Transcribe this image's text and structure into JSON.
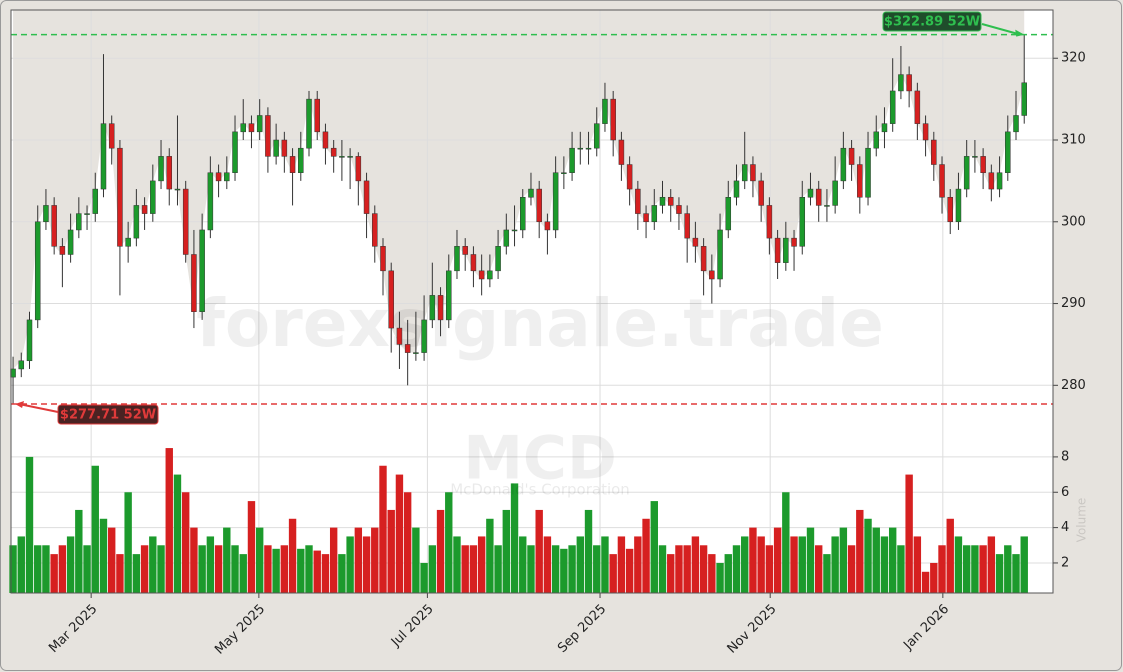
{
  "chart_data": {
    "type": "candlestick",
    "watermark": "forexsignale.trade",
    "symbol": "MCD",
    "company": "McDonald's Corporation",
    "volume_label": "Volume",
    "up_color": "#1c9a2c",
    "down_color": "#d62020",
    "grid": true,
    "xlim": [
      -0.25,
      126.5
    ],
    "xticks": [
      {
        "value": 9.5,
        "label": "Mar 2025"
      },
      {
        "value": 29.9,
        "label": "May 2025"
      },
      {
        "value": 50.4,
        "label": "Jul 2025"
      },
      {
        "value": 71.4,
        "label": "Sep 2025"
      },
      {
        "value": 92.1,
        "label": "Nov 2025"
      },
      {
        "value": 113.1,
        "label": "Jan 2026"
      }
    ],
    "ylim": [
      254.6,
      325.9
    ],
    "yticks": [
      280,
      290,
      300,
      310,
      320
    ],
    "y2lim": [
      0.3,
      8.9
    ],
    "y2ticks": [
      2,
      4,
      6,
      8
    ],
    "high_52w": {
      "value": 322.89,
      "label": "$322.89 52W",
      "color": "#2fbf4f"
    },
    "low_52w": {
      "value": 277.71,
      "label": "$277.71 52W",
      "color": "#e03a3a"
    },
    "ohlc": [
      [
        281,
        283.5,
        277.71,
        282
      ],
      [
        282,
        284,
        281,
        283
      ],
      [
        283,
        289,
        282,
        288
      ],
      [
        288,
        302,
        287,
        300
      ],
      [
        300,
        304,
        299,
        302
      ],
      [
        302,
        303,
        296,
        297
      ],
      [
        297,
        298,
        292,
        296
      ],
      [
        296,
        301,
        295,
        299
      ],
      [
        299,
        303,
        298,
        301
      ],
      [
        301,
        302,
        299,
        301
      ],
      [
        301,
        306,
        300,
        304
      ],
      [
        304,
        320.5,
        303,
        312
      ],
      [
        312,
        313,
        307,
        309
      ],
      [
        309,
        310,
        291,
        297
      ],
      [
        297,
        300,
        295,
        298
      ],
      [
        298,
        304,
        297,
        302
      ],
      [
        302,
        303,
        299,
        301
      ],
      [
        301,
        307,
        300,
        305
      ],
      [
        305,
        310,
        304,
        308
      ],
      [
        308,
        309,
        302,
        304
      ],
      [
        304,
        313,
        302,
        304
      ],
      [
        304,
        305,
        295,
        296
      ],
      [
        296,
        299,
        287,
        289
      ],
      [
        289,
        301,
        288,
        299
      ],
      [
        299,
        308,
        298,
        306
      ],
      [
        306,
        307,
        303,
        305
      ],
      [
        305,
        308,
        304,
        306
      ],
      [
        306,
        313,
        305,
        311
      ],
      [
        311,
        315,
        310,
        312
      ],
      [
        312,
        313,
        309,
        311
      ],
      [
        311,
        315,
        310,
        313
      ],
      [
        313,
        314,
        306,
        308
      ],
      [
        308,
        312,
        307,
        310
      ],
      [
        310,
        311,
        306,
        308
      ],
      [
        308,
        309,
        302,
        306
      ],
      [
        306,
        311,
        305,
        309
      ],
      [
        309,
        316,
        308,
        315
      ],
      [
        315,
        316,
        310,
        311
      ],
      [
        311,
        312,
        307,
        309
      ],
      [
        309,
        310,
        306,
        308
      ],
      [
        308,
        310,
        305,
        308
      ],
      [
        308,
        309,
        304,
        308
      ],
      [
        308,
        308.5,
        302,
        305
      ],
      [
        305,
        306,
        298,
        301
      ],
      [
        301,
        302,
        295,
        297
      ],
      [
        297,
        298,
        291,
        294
      ],
      [
        294,
        295,
        284,
        287
      ],
      [
        287,
        289,
        282,
        285
      ],
      [
        285,
        288,
        280,
        284
      ],
      [
        284,
        289,
        283,
        284
      ],
      [
        284,
        291,
        283,
        288
      ],
      [
        288,
        295,
        287,
        291
      ],
      [
        291,
        292,
        286,
        288
      ],
      [
        288,
        296,
        287,
        294
      ],
      [
        294,
        299,
        293,
        297
      ],
      [
        297,
        298,
        294,
        296
      ],
      [
        296,
        297,
        292,
        294
      ],
      [
        294,
        296,
        291,
        293
      ],
      [
        293,
        296,
        292,
        294
      ],
      [
        294,
        299,
        293,
        297
      ],
      [
        297,
        301,
        296,
        299
      ],
      [
        299,
        302,
        297,
        299
      ],
      [
        299,
        304,
        298,
        303
      ],
      [
        303,
        306,
        302,
        304
      ],
      [
        304,
        305,
        298,
        300
      ],
      [
        300,
        301,
        296,
        299
      ],
      [
        299,
        308,
        298,
        306
      ],
      [
        306,
        308,
        304,
        306
      ],
      [
        306,
        311,
        305,
        309
      ],
      [
        309,
        311,
        307,
        309
      ],
      [
        309,
        311,
        307,
        309
      ],
      [
        309,
        314,
        308,
        312
      ],
      [
        312,
        317,
        311,
        315
      ],
      [
        315,
        316,
        308,
        310
      ],
      [
        310,
        311,
        305,
        307
      ],
      [
        307,
        308,
        302,
        304
      ],
      [
        304,
        305,
        299,
        301
      ],
      [
        301,
        302,
        298,
        300
      ],
      [
        300,
        304,
        299,
        302
      ],
      [
        302,
        305,
        301,
        303
      ],
      [
        303,
        304,
        300,
        302
      ],
      [
        302,
        303,
        299,
        301
      ],
      [
        301,
        302,
        295,
        298
      ],
      [
        298,
        300,
        295,
        297
      ],
      [
        297,
        298,
        291,
        294
      ],
      [
        294,
        296,
        290,
        293
      ],
      [
        293,
        301,
        292,
        299
      ],
      [
        299,
        305,
        298,
        303
      ],
      [
        303,
        307,
        302,
        305
      ],
      [
        305,
        311,
        304,
        307
      ],
      [
        307,
        308,
        303,
        305
      ],
      [
        305,
        306,
        300,
        302
      ],
      [
        302,
        303,
        296,
        298
      ],
      [
        298,
        299,
        293,
        295
      ],
      [
        295,
        300,
        294,
        298
      ],
      [
        298,
        299,
        294,
        297
      ],
      [
        297,
        305,
        296,
        303
      ],
      [
        303,
        306,
        302,
        304
      ],
      [
        304,
        305,
        300,
        302
      ],
      [
        302,
        304,
        300,
        302
      ],
      [
        302,
        308,
        301,
        305
      ],
      [
        305,
        311,
        304,
        309
      ],
      [
        309,
        310,
        305,
        307
      ],
      [
        307,
        308,
        301,
        303
      ],
      [
        303,
        311,
        302,
        309
      ],
      [
        309,
        313,
        308,
        311
      ],
      [
        311,
        314,
        309,
        312
      ],
      [
        312,
        320,
        311,
        316
      ],
      [
        316,
        321.5,
        315,
        318
      ],
      [
        318,
        319,
        314,
        316
      ],
      [
        316,
        317,
        310,
        312
      ],
      [
        312,
        313,
        308,
        310
      ],
      [
        310,
        311,
        305,
        307
      ],
      [
        307,
        308,
        301,
        303
      ],
      [
        303,
        304,
        298.5,
        300
      ],
      [
        300,
        306,
        299,
        304
      ],
      [
        304,
        310,
        303,
        308
      ],
      [
        308,
        310,
        306,
        308
      ],
      [
        308,
        309,
        304,
        306
      ],
      [
        306,
        307,
        302.5,
        304
      ],
      [
        304,
        308,
        303,
        306
      ],
      [
        306,
        313,
        305,
        311
      ],
      [
        311,
        316,
        310,
        313
      ],
      [
        313,
        322.89,
        312,
        317
      ]
    ],
    "volume": [
      3,
      3.5,
      8,
      3,
      3,
      2.5,
      3,
      3.5,
      5,
      3,
      7.5,
      4.5,
      4,
      2.5,
      6,
      2.5,
      3,
      3.5,
      3,
      8.5,
      7,
      6,
      4,
      3,
      3.5,
      3,
      4,
      3,
      2.5,
      5.5,
      4,
      3,
      2.8,
      3,
      4.5,
      2.8,
      3,
      2.7,
      2.5,
      4,
      2.5,
      3.5,
      4,
      3.5,
      4,
      7.5,
      5,
      7,
      6,
      4,
      2,
      3,
      5,
      6,
      3.5,
      3,
      3,
      3.5,
      4.5,
      3,
      5,
      6.5,
      3.5,
      3,
      5,
      3.5,
      3,
      2.8,
      3,
      3.5,
      5,
      3,
      3.5,
      2.5,
      3.5,
      2.8,
      3.5,
      4.5,
      5.5,
      3,
      2.5,
      3,
      3,
      3.5,
      3,
      2.5,
      2,
      2.5,
      3,
      3.5,
      4,
      3.5,
      3,
      4,
      6,
      3.5,
      3.5,
      4,
      3,
      2.5,
      3.5,
      4,
      3,
      5,
      4.5,
      4,
      3.5,
      4,
      3,
      7,
      3.5,
      1.5,
      2,
      3,
      4.5,
      3.5,
      3,
      3,
      3,
      3.5,
      2.5,
      3,
      2.5,
      3.5
    ]
  }
}
